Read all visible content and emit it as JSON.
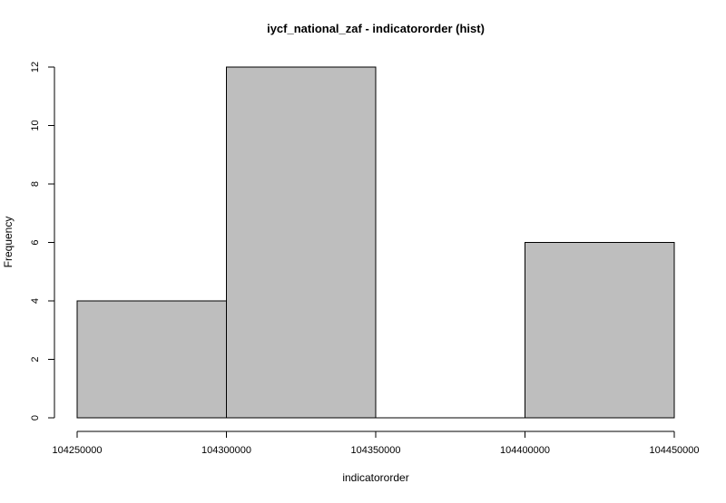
{
  "chart_data": {
    "type": "bar",
    "subtype": "histogram",
    "title": "iycf_national_zaf - indicatororder (hist)",
    "xlabel": "indicatororder",
    "ylabel": "Frequency",
    "bins": [
      {
        "start": 104250000,
        "end": 104300000,
        "count": 4
      },
      {
        "start": 104300000,
        "end": 104350000,
        "count": 12
      },
      {
        "start": 104350000,
        "end": 104400000,
        "count": 0
      },
      {
        "start": 104400000,
        "end": 104450000,
        "count": 6
      }
    ],
    "xlim": [
      104250000,
      104450000
    ],
    "ylim": [
      0,
      12
    ],
    "x_ticks": [
      104250000,
      104300000,
      104350000,
      104400000,
      104450000
    ],
    "x_tick_labels": [
      "104250000",
      "104300000",
      "104350000",
      "104400000",
      "104450000"
    ],
    "y_ticks": [
      0,
      2,
      4,
      6,
      8,
      10,
      12
    ],
    "y_tick_labels": [
      "0",
      "2",
      "4",
      "6",
      "8",
      "10",
      "12"
    ],
    "grid": false,
    "legend": "none",
    "colors": {
      "bar_fill": "#bebebe",
      "bar_stroke": "#000000",
      "axis": "#000000"
    }
  }
}
